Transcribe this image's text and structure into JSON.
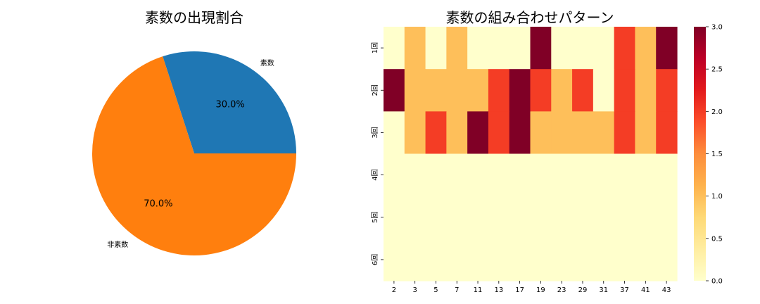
{
  "chart_data": [
    {
      "type": "pie",
      "title": "素数の出現割合",
      "slices": [
        {
          "label": "素数",
          "value": 30.0,
          "pct_label": "30.0%",
          "color": "#1f77b4"
        },
        {
          "label": "非素数",
          "value": 70.0,
          "pct_label": "70.0%",
          "color": "#ff7f0e"
        }
      ]
    },
    {
      "type": "heatmap",
      "title": "素数の組み合わせパターン",
      "x_categories": [
        "2",
        "3",
        "5",
        "7",
        "11",
        "13",
        "17",
        "19",
        "23",
        "29",
        "31",
        "37",
        "41",
        "43"
      ],
      "y_categories": [
        "1回",
        "2回",
        "3回",
        "4回",
        "5回",
        "6回"
      ],
      "values": [
        [
          0,
          1,
          0,
          1,
          0,
          0,
          0,
          3,
          0,
          0,
          0,
          2,
          1,
          3
        ],
        [
          3,
          1,
          1,
          1,
          1,
          2,
          3,
          2,
          1,
          2,
          0,
          2,
          1,
          2
        ],
        [
          0,
          1,
          2,
          1,
          3,
          2,
          3,
          1,
          1,
          1,
          1,
          2,
          1,
          2
        ],
        [
          0,
          0,
          0,
          0,
          0,
          0,
          0,
          0,
          0,
          0,
          0,
          0,
          0,
          0
        ],
        [
          0,
          0,
          0,
          0,
          0,
          0,
          0,
          0,
          0,
          0,
          0,
          0,
          0,
          0
        ],
        [
          0,
          0,
          0,
          0,
          0,
          0,
          0,
          0,
          0,
          0,
          0,
          0,
          0,
          0
        ]
      ],
      "colormap": "YlOrRd",
      "colorbar": {
        "min": 0.0,
        "max": 3.0,
        "ticks": [
          "0.0",
          "0.5",
          "1.0",
          "1.5",
          "2.0",
          "2.5",
          "3.0"
        ]
      }
    }
  ]
}
